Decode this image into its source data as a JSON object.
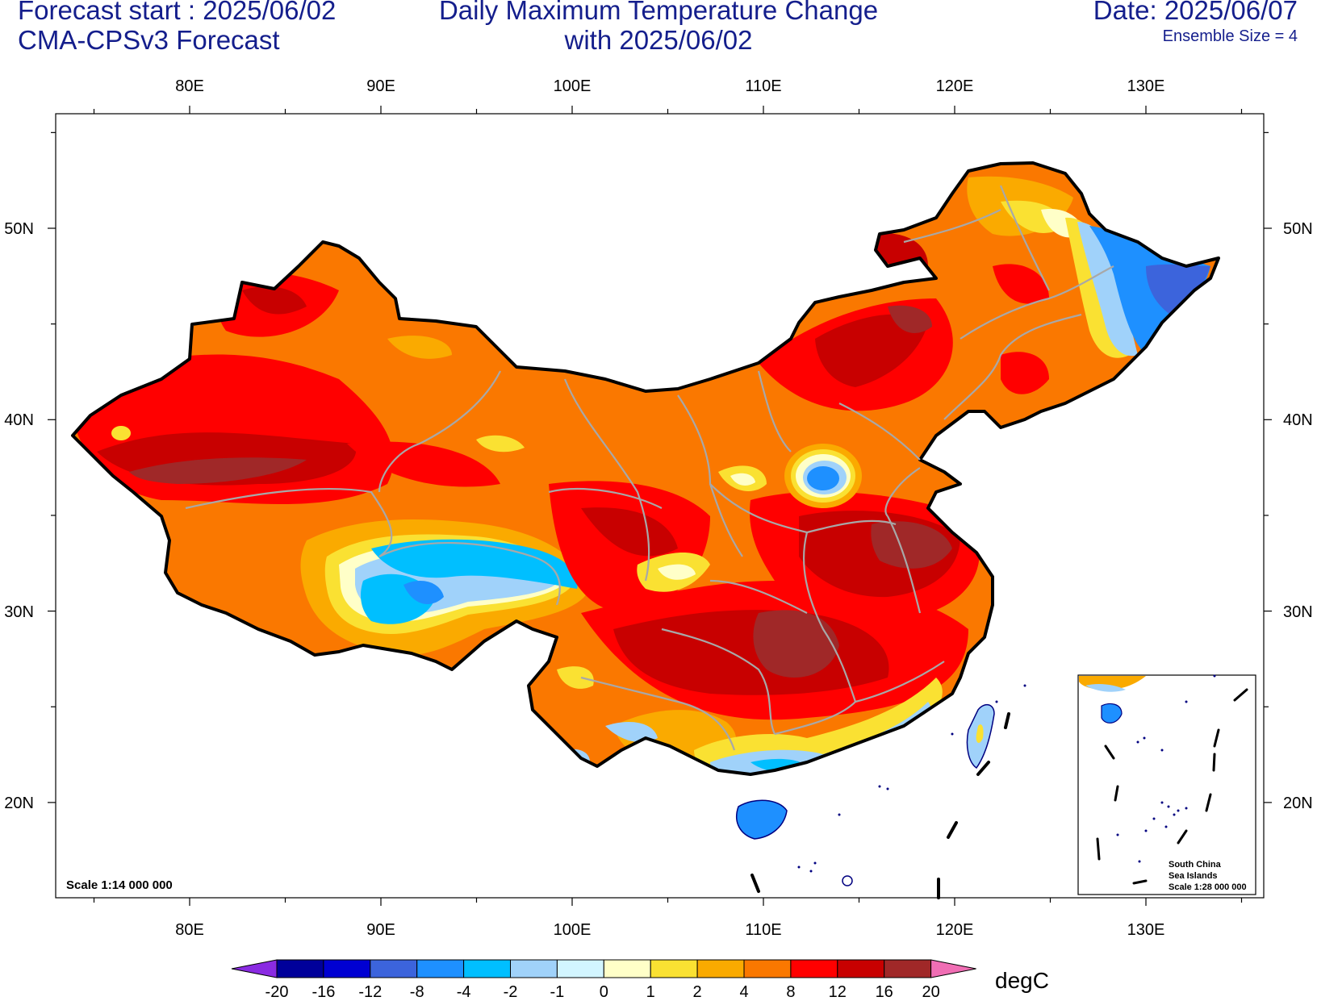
{
  "header": {
    "forecast_start": "Forecast start : 2025/06/02",
    "model": "CMA-CPSv3 Forecast",
    "title_line1": "Daily Maximum Temperature Change",
    "title_line2": "with 2025/06/02",
    "date": "Date: 2025/06/07",
    "ensemble": "Ensemble Size = 4"
  },
  "map": {
    "lon_labels": [
      "80E",
      "90E",
      "100E",
      "110E",
      "120E",
      "130E"
    ],
    "lat_labels": [
      "50N",
      "40N",
      "30N",
      "20N"
    ],
    "scale_text": "Scale 1:14 000 000",
    "inset": {
      "line1": "South China",
      "line2": "Sea Islands",
      "line3": "Scale 1:28 000 000"
    }
  },
  "colorbar": {
    "unit": "degC",
    "labels": [
      "-20",
      "-16",
      "-12",
      "-8",
      "-4",
      "-2",
      "-1",
      "0",
      "1",
      "2",
      "4",
      "8",
      "12",
      "16",
      "20"
    ],
    "colors": [
      "#8a2be2",
      "#00009a",
      "#0000d2",
      "#3c64dc",
      "#1e90ff",
      "#00bfff",
      "#a0d2fa",
      "#d2f5ff",
      "#ffffc8",
      "#fae132",
      "#faaa00",
      "#fa7800",
      "#ff0000",
      "#c80000",
      "#a02828",
      "#f06eb4"
    ]
  }
}
